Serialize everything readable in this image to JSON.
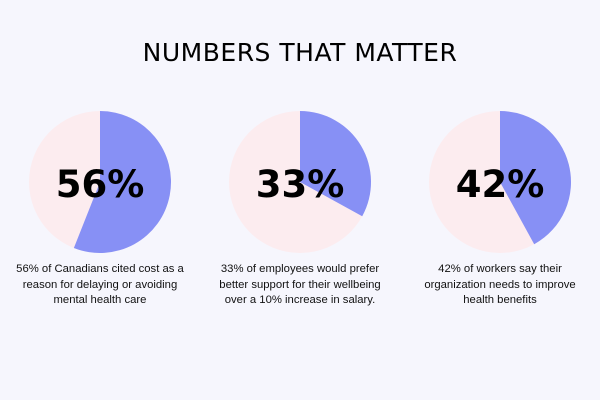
{
  "title": "NUMBERS THAT MATTER",
  "colors": {
    "background": "#f6f6fd",
    "highlight": "#8790f5",
    "remainder": "#fcecef"
  },
  "chart_data": [
    {
      "type": "pie",
      "value": 56,
      "label": "56%",
      "caption": "56% of Canadians cited cost as a reason for delaying or avoiding mental health care"
    },
    {
      "type": "pie",
      "value": 33,
      "label": "33%",
      "caption": "33% of employees would prefer better support for their wellbeing over a 10% increase in salary."
    },
    {
      "type": "pie",
      "value": 42,
      "label": "42%",
      "caption": "42% of workers say their organization needs to improve health benefits"
    }
  ]
}
